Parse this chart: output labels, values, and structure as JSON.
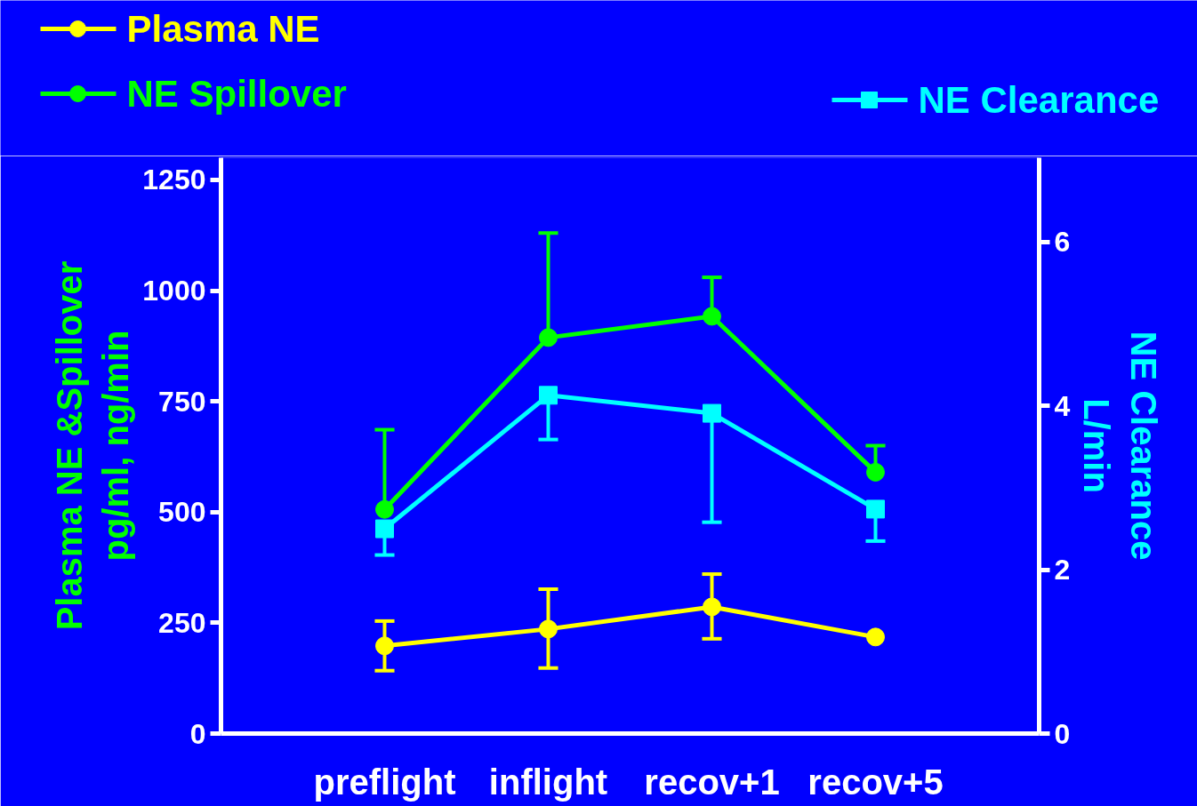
{
  "chart_data": {
    "type": "line",
    "categories": [
      "preflight",
      "inflight",
      "recov+1",
      "recov+5"
    ],
    "ylabel": "Plasma NE &Spillover\npg/ml, ng/min",
    "y2label": "NE Clearance\nL/min",
    "ylim": [
      0,
      1300
    ],
    "yticks": [
      0,
      250,
      500,
      750,
      1000,
      1250
    ],
    "y2lim": [
      0,
      7.03
    ],
    "y2ticks": [
      0,
      2,
      4,
      6
    ],
    "grid": false,
    "legend": "top",
    "series": [
      {
        "name": "Plasma NE",
        "color": "#ffff00",
        "marker": "circle",
        "values": [
          198,
          236,
          286,
          218
        ],
        "errors": [
          [
            142,
            254
          ],
          [
            148,
            326
          ],
          [
            214,
            360
          ],
          null
        ]
      },
      {
        "name": "NE Spillover",
        "color": "#00ff00",
        "marker": "circle",
        "values": [
          506,
          894,
          942,
          590
        ],
        "errors": [
          [
            506,
            686
          ],
          [
            894,
            1130
          ],
          [
            942,
            1030
          ],
          [
            590,
            650
          ]
        ]
      },
      {
        "name": "NE Clearance",
        "color": "#00ffff",
        "marker": "square",
        "axis": "y2",
        "values": [
          2.5,
          4.13,
          3.91,
          2.74
        ],
        "errors": [
          [
            2.18,
            2.5
          ],
          [
            3.59,
            4.13
          ],
          [
            2.58,
            3.91
          ],
          [
            2.35,
            2.74
          ]
        ]
      }
    ]
  }
}
